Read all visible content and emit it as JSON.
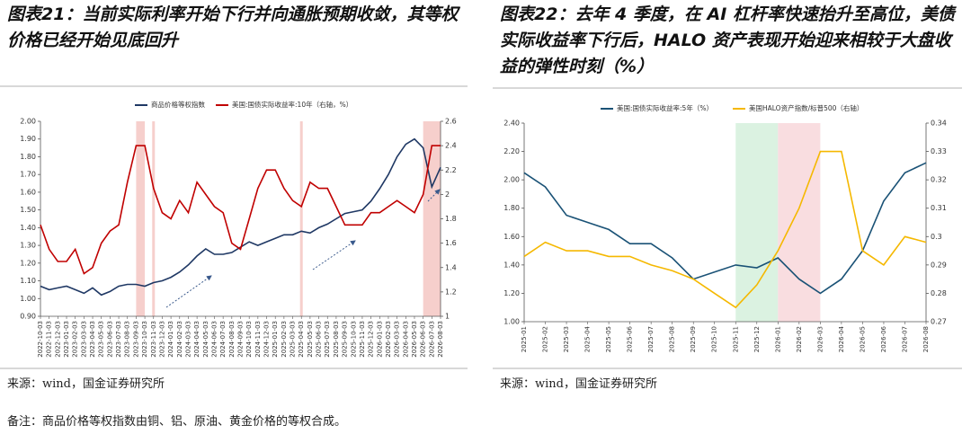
{
  "chart_data": [
    {
      "type": "line",
      "title": "图表21：当前实际利率开始下行并向通胀预期收敛，其等权价格已经开始见底回升",
      "categories": [
        "2022-10-03",
        "2022-11-03",
        "2022-12-03",
        "2023-01-03",
        "2023-02-03",
        "2023-03-03",
        "2023-04-03",
        "2023-05-03",
        "2023-06-03",
        "2023-07-03",
        "2023-08-03",
        "2023-09-03",
        "2023-10-03",
        "2023-11-03",
        "2023-12-03",
        "2024-01-03",
        "2024-02-03",
        "2024-03-03",
        "2024-04-03",
        "2024-05-03",
        "2024-06-03",
        "2024-07-03",
        "2024-08-03",
        "2024-09-03",
        "2024-10-03",
        "2024-11-03",
        "2024-12-03",
        "2025-01-03",
        "2025-02-03",
        "2025-03-03",
        "2025-04-03",
        "2025-05-03",
        "2025-06-03",
        "2025-07-03",
        "2025-08-03",
        "2025-09-03",
        "2025-10-03",
        "2025-11-03",
        "2025-12-03",
        "2026-01-03",
        "2026-02-03",
        "2026-03-03",
        "2026-04-03",
        "2026-05-03",
        "2026-06-03",
        "2026-07-03",
        "2026-08-03"
      ],
      "series": [
        {
          "name": "商品价格等权指数",
          "color": "#1f3864",
          "values": [
            1.07,
            1.05,
            1.06,
            1.07,
            1.05,
            1.03,
            1.06,
            1.02,
            1.04,
            1.07,
            1.08,
            1.08,
            1.07,
            1.09,
            1.1,
            1.12,
            1.15,
            1.19,
            1.24,
            1.28,
            1.25,
            1.25,
            1.26,
            1.29,
            1.32,
            1.3,
            1.32,
            1.34,
            1.36,
            1.36,
            1.38,
            1.37,
            1.4,
            1.42,
            1.45,
            1.48,
            1.49,
            1.5,
            1.55,
            1.62,
            1.7,
            1.8,
            1.87,
            1.9,
            1.85,
            1.63,
            1.74
          ]
        },
        {
          "name": "美国:国债实际收益率:10年（右轴，%）",
          "color": "#c00000",
          "axis": "y2",
          "values": [
            1.75,
            1.55,
            1.45,
            1.45,
            1.55,
            1.35,
            1.4,
            1.6,
            1.7,
            1.75,
            2.1,
            2.4,
            2.4,
            2.05,
            1.85,
            1.8,
            1.95,
            1.85,
            2.1,
            2.0,
            1.9,
            1.85,
            1.6,
            1.55,
            1.8,
            2.05,
            2.2,
            2.2,
            2.05,
            1.95,
            1.9,
            2.1,
            2.05,
            2.05,
            1.9,
            1.75,
            1.75,
            1.75,
            1.85,
            1.85,
            1.9,
            1.95,
            1.9,
            1.85,
            2.0,
            2.4,
            2.4
          ]
        }
      ],
      "ylim": [
        0.9,
        2.0
      ],
      "yticks": [
        {
          "value": 0.9,
          "label": "0.90"
        },
        {
          "value": 1.0,
          "label": "1.00"
        },
        {
          "value": 1.1,
          "label": "1.10"
        },
        {
          "value": 1.2,
          "label": "1.20"
        },
        {
          "value": 1.3,
          "label": "1.30"
        },
        {
          "value": 1.4,
          "label": "1.40"
        },
        {
          "value": 1.5,
          "label": "1.50"
        },
        {
          "value": 1.6,
          "label": "1.60"
        },
        {
          "value": 1.7,
          "label": "1.70"
        },
        {
          "value": 1.8,
          "label": "1.80"
        },
        {
          "value": 1.9,
          "label": "1.90"
        },
        {
          "value": 2.0,
          "label": "2.00"
        }
      ],
      "y2lim": [
        1,
        2.6
      ],
      "y2ticks": [
        1,
        1.2,
        1.4,
        1.6,
        1.8,
        2,
        2.2,
        2.4,
        2.6
      ],
      "bands": [
        {
          "start": "2023-09-03",
          "end": "2023-10-03",
          "color": "#f4c7c3"
        },
        {
          "start": "2023-11-03",
          "end": "2023-11-03",
          "color": "#f4c7c3"
        },
        {
          "start": "2025-04-03",
          "end": "2025-04-03",
          "color": "#f4c7c3"
        },
        {
          "start": "2026-06-03",
          "end": "2026-08-03",
          "color": "#f4c7c3"
        }
      ],
      "source": "来源：wind，国金证券研究所"
    },
    {
      "type": "line",
      "title": "图表22：去年 4 季度，在 AI 杠杆率快速抬升至高位，美债实际收益率下行后，HALO 资产表现开始迎来相较于大盘收益的弹性时刻（%）",
      "categories": [
        "2025-01",
        "2025-02",
        "2025-03",
        "2025-04",
        "2025-05",
        "2025-06",
        "2025-07",
        "2025-08",
        "2025-09",
        "2025-10",
        "2025-11",
        "2025-12",
        "2026-01",
        "2026-02",
        "2026-03",
        "2026-04",
        "2026-05",
        "2026-06",
        "2026-07",
        "2026-08"
      ],
      "series": [
        {
          "name": "美国:国债实际收益率:5年（%）",
          "color": "#1a5276",
          "values": [
            2.05,
            1.95,
            1.75,
            1.7,
            1.65,
            1.55,
            1.55,
            1.45,
            1.3,
            1.35,
            1.4,
            1.38,
            1.45,
            1.3,
            1.2,
            1.3,
            1.5,
            1.85,
            2.05,
            2.12
          ]
        },
        {
          "name": "美国HALO资产指数/标普500（右轴）",
          "color": "#f5b800",
          "axis": "y2",
          "values": [
            0.293,
            0.298,
            0.295,
            0.295,
            0.293,
            0.293,
            0.29,
            0.288,
            0.285,
            0.28,
            0.275,
            0.283,
            0.295,
            0.31,
            0.33,
            0.33,
            0.295,
            0.29,
            0.3,
            0.298
          ]
        }
      ],
      "ylim": [
        1.0,
        2.4
      ],
      "yticks": [
        {
          "value": 1.0,
          "label": "1.00"
        },
        {
          "value": 1.2,
          "label": "1.20"
        },
        {
          "value": 1.4,
          "label": "1.40"
        },
        {
          "value": 1.6,
          "label": "1.60"
        },
        {
          "value": 1.8,
          "label": "1.80"
        },
        {
          "value": 2.0,
          "label": "2.00"
        },
        {
          "value": 2.2,
          "label": "2.20"
        },
        {
          "value": 2.4,
          "label": "2.40"
        }
      ],
      "y2lim": [
        0.27,
        0.34
      ],
      "y2ticks": [
        0.27,
        0.28,
        0.29,
        0.3,
        0.31,
        0.32,
        0.33,
        0.34
      ],
      "bands": [
        {
          "start": "2025-11",
          "end": "2026-01",
          "color": "#d5f0dc"
        },
        {
          "start": "2026-01",
          "end": "2026-03",
          "color": "#f8d7da"
        }
      ],
      "source": "来源：wind，国金证券研究所"
    }
  ],
  "note": "备注：商品价格等权指数由铜、铝、原油、黄金价格的等权合成。"
}
